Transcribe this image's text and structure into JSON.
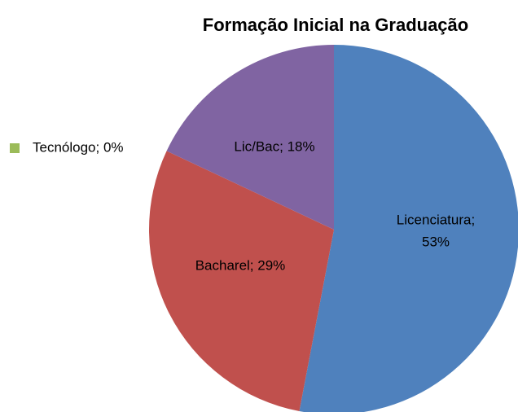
{
  "chart_data": {
    "type": "pie",
    "title": "Formação Inicial na Graduação",
    "categories": [
      "Licenciatura",
      "Bacharel",
      "Tecnólogo",
      "Lic/Bac"
    ],
    "values": [
      53,
      29,
      0,
      18
    ],
    "value_labels": [
      "Licenciatura; 53%",
      "Bacharel; 29%",
      "Tecnólogo; 0%",
      "Lic/Bac; 18%"
    ],
    "colors": [
      "#4f81bd",
      "#c0504d",
      "#9bbb59",
      "#8064a2"
    ]
  }
}
